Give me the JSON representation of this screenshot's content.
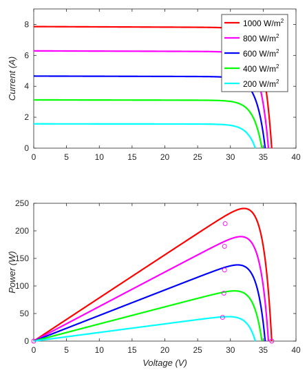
{
  "chart_data": [
    {
      "type": "line",
      "xlabel": "",
      "ylabel": "Current (A)",
      "xlim": [
        0,
        40
      ],
      "ylim": [
        0,
        9
      ],
      "xticks": [
        0,
        5,
        10,
        15,
        20,
        25,
        30,
        35,
        40
      ],
      "yticks": [
        0,
        2,
        4,
        6,
        8
      ],
      "grid": false,
      "legend_position": "top-right",
      "series": [
        {
          "name": "1000 W/m",
          "sup": "2",
          "color": "#ff0000",
          "isc": 7.86,
          "voc": 36.3
        },
        {
          "name": "800 W/m",
          "sup": "2",
          "color": "#ff00ff",
          "isc": 6.29,
          "voc": 35.8
        },
        {
          "name": "600 W/m",
          "sup": "2",
          "color": "#0000ff",
          "isc": 4.66,
          "voc": 35.3
        },
        {
          "name": "400 W/m",
          "sup": "2",
          "color": "#00ff00",
          "isc": 3.12,
          "voc": 34.8
        },
        {
          "name": "200 W/m",
          "sup": "2",
          "color": "#00ffff",
          "isc": 1.57,
          "voc": 33.8
        }
      ]
    },
    {
      "type": "line",
      "xlabel": "Voltage (V)",
      "ylabel": "Power (W)",
      "xlim": [
        0,
        40
      ],
      "ylim": [
        0,
        250
      ],
      "xticks": [
        0,
        5,
        10,
        15,
        20,
        25,
        30,
        35,
        40
      ],
      "yticks": [
        0,
        50,
        100,
        150,
        200,
        250
      ],
      "grid": false,
      "series": [
        {
          "color": "#ff0000",
          "isc": 7.86,
          "voc": 36.3,
          "mpp": [
            29.2,
            213
          ]
        },
        {
          "color": "#ff00ff",
          "isc": 6.29,
          "voc": 35.8,
          "mpp": [
            29.1,
            172
          ]
        },
        {
          "color": "#0000ff",
          "isc": 4.66,
          "voc": 35.3,
          "mpp": [
            29.1,
            129
          ]
        },
        {
          "color": "#00ff00",
          "isc": 3.12,
          "voc": 34.8,
          "mpp": [
            29.0,
            87
          ]
        },
        {
          "color": "#00ffff",
          "isc": 1.57,
          "voc": 33.8,
          "mpp": [
            28.8,
            43
          ]
        }
      ],
      "extra_markers": [
        [
          0,
          0
        ],
        [
          36.3,
          0
        ]
      ]
    }
  ]
}
